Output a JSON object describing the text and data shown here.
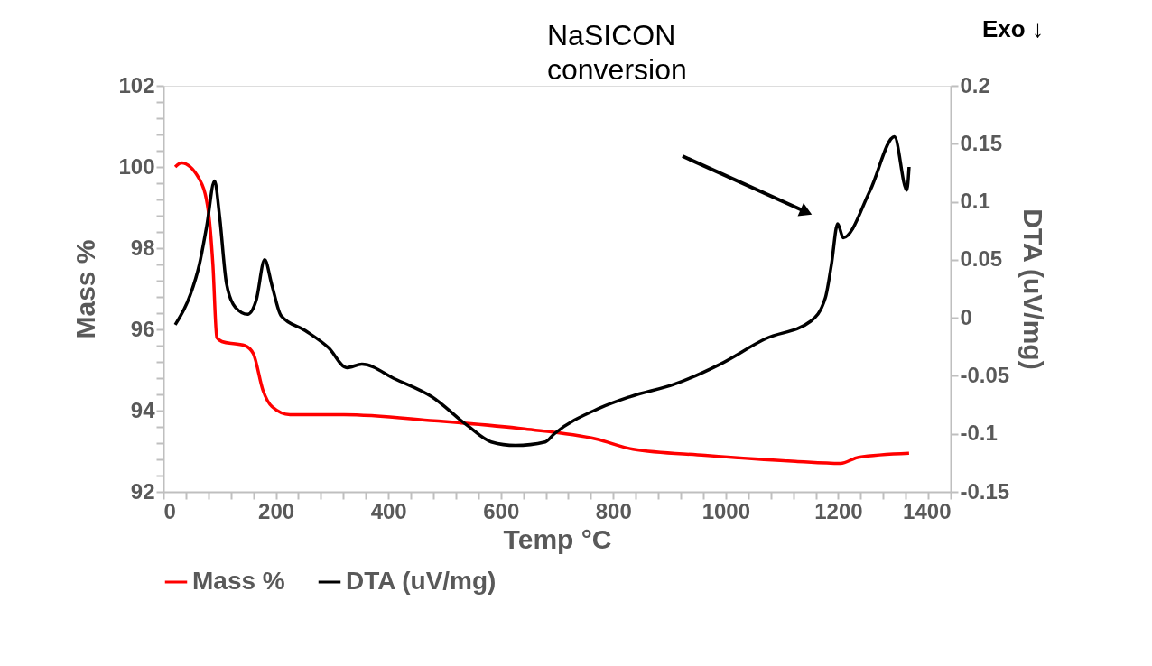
{
  "chart_data": {
    "type": "line",
    "xlabel": "Temp °C",
    "ylabel": "Mass %",
    "y2label": "DTA (uV/mg)",
    "annotations": [
      "NaSICON conversion",
      "Exo ↓"
    ],
    "xlim": [
      0,
      1400
    ],
    "xticks": [
      0,
      {
        "value": 40,
        "label": null
      },
      {
        "value": 80,
        "label": null
      },
      {
        "value": 120,
        "label": null
      },
      {
        "value": 160,
        "label": null
      },
      200,
      {
        "value": 240,
        "label": null
      },
      {
        "value": 280,
        "label": null
      },
      {
        "value": 320,
        "label": null
      },
      {
        "value": 360,
        "label": null
      },
      400,
      {
        "value": 440,
        "label": null
      },
      {
        "value": 480,
        "label": null
      },
      {
        "value": 520,
        "label": null
      },
      {
        "value": 560,
        "label": null
      },
      600,
      {
        "value": 640,
        "label": null
      },
      {
        "value": 680,
        "label": null
      },
      {
        "value": 720,
        "label": null
      },
      {
        "value": 760,
        "label": null
      },
      800,
      {
        "value": 840,
        "label": null
      },
      {
        "value": 880,
        "label": null
      },
      {
        "value": 920,
        "label": null
      },
      {
        "value": 960,
        "label": null
      },
      1000,
      {
        "value": 1040,
        "label": null
      },
      {
        "value": 1080,
        "label": null
      },
      {
        "value": 1120,
        "label": null
      },
      {
        "value": 1160,
        "label": null
      },
      1200,
      {
        "value": 1240,
        "label": null
      },
      {
        "value": 1280,
        "label": null
      },
      {
        "value": 1320,
        "label": null
      },
      {
        "value": 1360,
        "label": null
      },
      1400
    ],
    "ylim": [
      92,
      102
    ],
    "yticks": [
      92,
      {
        "value": 92.4,
        "label": null
      },
      {
        "value": 92.8,
        "label": null
      },
      {
        "value": 93.2,
        "label": null
      },
      {
        "value": 93.6,
        "label": null
      },
      94,
      {
        "value": 94.4,
        "label": null
      },
      {
        "value": 94.8,
        "label": null
      },
      {
        "value": 95.2,
        "label": null
      },
      {
        "value": 95.6,
        "label": null
      },
      96,
      {
        "value": 96.4,
        "label": null
      },
      {
        "value": 96.8,
        "label": null
      },
      {
        "value": 97.2,
        "label": null
      },
      {
        "value": 97.6,
        "label": null
      },
      98,
      {
        "value": 98.4,
        "label": null
      },
      {
        "value": 98.8,
        "label": null
      },
      {
        "value": 99.2,
        "label": null
      },
      {
        "value": 99.6,
        "label": null
      },
      100,
      {
        "value": 100.4,
        "label": null
      },
      {
        "value": 100.8,
        "label": null
      },
      {
        "value": 101.2,
        "label": null
      },
      {
        "value": 101.6,
        "label": null
      },
      102
    ],
    "y2lim": [
      -0.15,
      0.2
    ],
    "y2ticks": [
      -0.15,
      -0.1,
      -0.05,
      0,
      0.05,
      0.1,
      0.15,
      0.2
    ],
    "grid": false,
    "legend": "bottom",
    "marker": "none",
    "line_style": "solid",
    "series": [
      {
        "name": "Mass %",
        "color": "#ff0000",
        "x": [
          21,
          32,
          64,
          80,
          88,
          95,
          104,
          145,
          160,
          177,
          193,
          225,
          321,
          482,
          642,
          770,
          835,
          963,
          1124,
          1204,
          1236,
          1326
        ],
        "values": [
          100.0,
          100.1,
          99.7,
          98.9,
          97.6,
          95.8,
          95.7,
          95.6,
          95.4,
          94.5,
          94.1,
          93.9,
          93.9,
          93.75,
          93.55,
          93.3,
          93.05,
          92.9,
          92.75,
          92.7,
          92.85,
          92.95
        ]
      },
      {
        "name": "DTA (uV/mg)",
        "color": "#000000",
        "axis": "y2",
        "x": [
          21,
          48,
          64,
          77,
          91,
          100,
          112,
          128,
          150,
          165,
          180,
          193,
          209,
          252,
          294,
          326,
          353,
          413,
          477,
          541,
          583,
          626,
          679,
          695,
          775,
          830,
          910,
          990,
          1071,
          1151,
          1177,
          1188,
          1199,
          1209,
          1257,
          1300,
          1322,
          1326
        ],
        "values": [
          -0.006,
          0.02,
          0.046,
          0.079,
          0.118,
          0.087,
          0.03,
          0.009,
          0.003,
          0.015,
          0.05,
          0.028,
          0.002,
          -0.011,
          -0.026,
          -0.043,
          -0.04,
          -0.053,
          -0.068,
          -0.093,
          -0.107,
          -0.11,
          -0.107,
          -0.1,
          -0.078,
          -0.068,
          -0.057,
          -0.04,
          -0.018,
          -0.003,
          0.017,
          0.046,
          0.081,
          0.069,
          0.11,
          0.156,
          0.11,
          0.13
        ]
      }
    ]
  }
}
